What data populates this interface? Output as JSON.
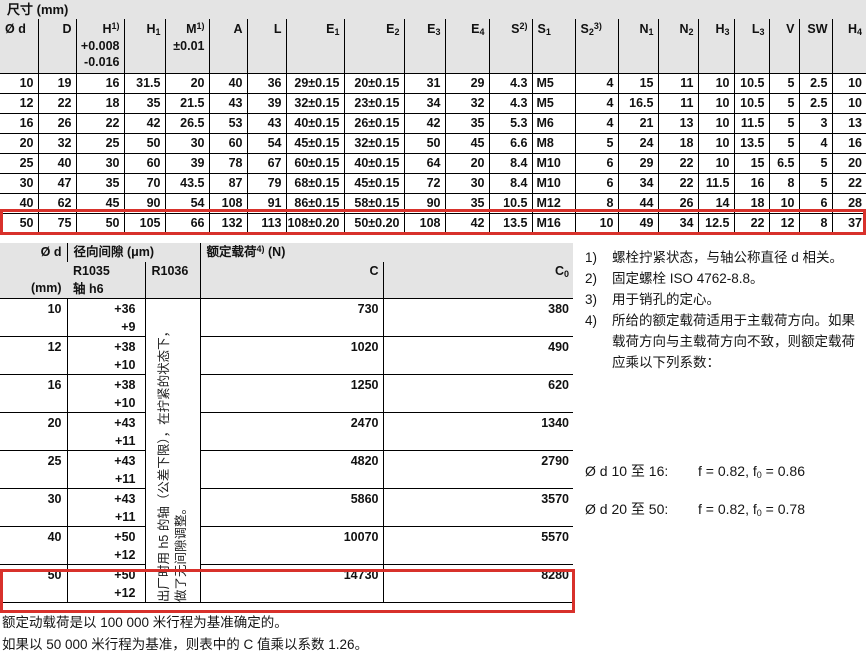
{
  "colors": {
    "header_bg": "#e4e4e4",
    "highlight_red": "#d8312b",
    "line": "#000000"
  },
  "dim_table": {
    "title": "尺寸 (mm)",
    "columns": [
      {
        "parts": [
          {
            "t": "Ø d"
          }
        ],
        "align": "left"
      },
      {
        "parts": [
          {
            "t": "D"
          }
        ]
      },
      {
        "parts": [
          {
            "t": "H"
          },
          {
            "sup": "1)"
          }
        ],
        "extra": [
          "+0.008",
          "-0.016"
        ]
      },
      {
        "parts": [
          {
            "t": "H"
          },
          {
            "sub": "1"
          }
        ]
      },
      {
        "parts": [
          {
            "t": "M"
          },
          {
            "sup": "1)"
          }
        ],
        "extra": [
          "±0.01"
        ]
      },
      {
        "parts": [
          {
            "t": "A"
          }
        ]
      },
      {
        "parts": [
          {
            "t": "L"
          }
        ]
      },
      {
        "parts": [
          {
            "t": "E"
          },
          {
            "sub": "1"
          }
        ]
      },
      {
        "parts": [
          {
            "t": "E"
          },
          {
            "sub": "2"
          }
        ]
      },
      {
        "parts": [
          {
            "t": "E"
          },
          {
            "sub": "3"
          }
        ]
      },
      {
        "parts": [
          {
            "t": "E"
          },
          {
            "sub": "4"
          }
        ]
      },
      {
        "parts": [
          {
            "t": "S"
          },
          {
            "sup": "2)"
          }
        ]
      },
      {
        "parts": [
          {
            "t": "S"
          },
          {
            "sub": "1"
          }
        ],
        "align": "left",
        "body_align": "left"
      },
      {
        "parts": [
          {
            "t": "S"
          },
          {
            "sub": "2"
          },
          {
            "sup": "3)"
          }
        ],
        "align": "left"
      },
      {
        "parts": [
          {
            "t": "N"
          },
          {
            "sub": "1"
          }
        ]
      },
      {
        "parts": [
          {
            "t": "N"
          },
          {
            "sub": "2"
          }
        ]
      },
      {
        "parts": [
          {
            "t": "H"
          },
          {
            "sub": "3"
          }
        ]
      },
      {
        "parts": [
          {
            "t": "L"
          },
          {
            "sub": "3"
          }
        ]
      },
      {
        "parts": [
          {
            "t": "V"
          }
        ]
      },
      {
        "parts": [
          {
            "t": "SW"
          }
        ]
      },
      {
        "parts": [
          {
            "t": "H"
          },
          {
            "sub": "4"
          }
        ]
      }
    ],
    "rows": [
      [
        "10",
        "19",
        "16",
        "31.5",
        "20",
        "40",
        "36",
        "29±0.15",
        "20±0.15",
        "31",
        "29",
        "4.3",
        "M5",
        "4",
        "15",
        "11",
        "10",
        "10.5",
        "5",
        "2.5",
        "10"
      ],
      [
        "12",
        "22",
        "18",
        "35",
        "21.5",
        "43",
        "39",
        "32±0.15",
        "23±0.15",
        "34",
        "32",
        "4.3",
        "M5",
        "4",
        "16.5",
        "11",
        "10",
        "10.5",
        "5",
        "2.5",
        "10"
      ],
      [
        "16",
        "26",
        "22",
        "42",
        "26.5",
        "53",
        "43",
        "40±0.15",
        "26±0.15",
        "42",
        "35",
        "5.3",
        "M6",
        "4",
        "21",
        "13",
        "10",
        "11.5",
        "5",
        "3",
        "13"
      ],
      [
        "20",
        "32",
        "25",
        "50",
        "30",
        "60",
        "54",
        "45±0.15",
        "32±0.15",
        "50",
        "45",
        "6.6",
        "M8",
        "5",
        "24",
        "18",
        "10",
        "13.5",
        "5",
        "4",
        "16"
      ],
      [
        "25",
        "40",
        "30",
        "60",
        "39",
        "78",
        "67",
        "60±0.15",
        "40±0.15",
        "64",
        "20",
        "8.4",
        "M10",
        "6",
        "29",
        "22",
        "10",
        "15",
        "6.5",
        "5",
        "20"
      ],
      [
        "30",
        "47",
        "35",
        "70",
        "43.5",
        "87",
        "79",
        "68±0.15",
        "45±0.15",
        "72",
        "30",
        "8.4",
        "M10",
        "6",
        "34",
        "22",
        "11.5",
        "16",
        "8",
        "5",
        "22"
      ],
      [
        "40",
        "62",
        "45",
        "90",
        "54",
        "108",
        "91",
        "86±0.15",
        "58±0.15",
        "90",
        "35",
        "10.5",
        "M12",
        "8",
        "44",
        "26",
        "14",
        "18",
        "10",
        "6",
        "28"
      ],
      [
        "50",
        "75",
        "50",
        "105",
        "66",
        "132",
        "113",
        "108±0.20",
        "50±0.20",
        "108",
        "42",
        "13.5",
        "M16",
        "10",
        "49",
        "34",
        "12.5",
        "22",
        "12",
        "8",
        "37"
      ]
    ],
    "highlighted_row_d": "50"
  },
  "load_table": {
    "header": {
      "col_d_top": "Ø d",
      "col_d_bottom": "(mm)",
      "clearance_title": "径向间隙 (μm)",
      "r1035": "R1035",
      "r1035_sub": "轴 h6",
      "r1036": "R1036",
      "load_title": [
        {
          "t": "额定载荷"
        },
        {
          "sup": "4)"
        },
        {
          "t": " (N)"
        }
      ],
      "c_label": "C",
      "c0_label": [
        {
          "t": "C"
        },
        {
          "sub": "0"
        }
      ]
    },
    "vertical_note_line1": "出厂时用 h5 的轴（公差下限），在拧紧的状态下，",
    "vertical_note_line2": "做了无间隙调整。",
    "rows": [
      {
        "d": "10",
        "clearance": [
          "+36",
          "+9"
        ],
        "c": "730",
        "c0": "380"
      },
      {
        "d": "12",
        "clearance": [
          "+38",
          "+10"
        ],
        "c": "1020",
        "c0": "490"
      },
      {
        "d": "16",
        "clearance": [
          "+38",
          "+10"
        ],
        "c": "1250",
        "c0": "620"
      },
      {
        "d": "20",
        "clearance": [
          "+43",
          "+11"
        ],
        "c": "2470",
        "c0": "1340"
      },
      {
        "d": "25",
        "clearance": [
          "+43",
          "+11"
        ],
        "c": "4820",
        "c0": "2790"
      },
      {
        "d": "30",
        "clearance": [
          "+43",
          "+11"
        ],
        "c": "5860",
        "c0": "3570"
      },
      {
        "d": "40",
        "clearance": [
          "+50",
          "+12"
        ],
        "c": "10070",
        "c0": "5570"
      },
      {
        "d": "50",
        "clearance": [
          "+50",
          "+12"
        ],
        "c": "14730",
        "c0": "8280"
      }
    ],
    "highlighted_row_d": "50"
  },
  "footnotes": [
    {
      "marker": "1)",
      "text": "螺栓拧紧状态，与轴公称直径 d 相关。"
    },
    {
      "marker": "2)",
      "text": "固定螺栓 ISO 4762-8.8。"
    },
    {
      "marker": "3)",
      "text": "用于销孔的定心。"
    },
    {
      "marker": "4)",
      "text": "所给的额定载荷适用于主载荷方向。如果载荷方向与主载荷方向不致，则额定载荷应乘以下列系数："
    }
  ],
  "factors": [
    {
      "label": "Ø d 10 至 16:",
      "value_pre": "f = 0.82, f",
      "value_sub": "0",
      "value_post": " = 0.86"
    },
    {
      "label": "Ø d 20 至 50:",
      "value_pre": "f = 0.82, f",
      "value_sub": "0",
      "value_post": " = 0.78"
    }
  ],
  "footer_lines": [
    "额定动载荷是以 100 000 米行程为基准确定的。",
    "如果以 50 000 米行程为基准，则表中的 C 值乘以系数 1.26。"
  ]
}
